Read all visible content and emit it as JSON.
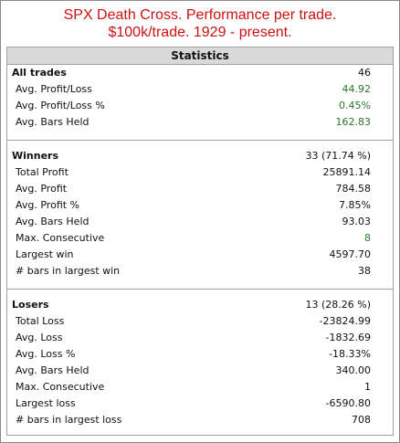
{
  "title": [
    "SPX Death Cross.  Performance per trade.",
    "$100k/trade. 1929 - present."
  ],
  "header": "Statistics",
  "sections": [
    {
      "label": "All trades",
      "value": "46",
      "rows": [
        {
          "label": "Avg. Profit/Loss",
          "value": "44.92",
          "color": "#2a7a2a"
        },
        {
          "label": "Avg. Profit/Loss %",
          "value": "0.45%",
          "color": "#2a7a2a"
        },
        {
          "label": "Avg. Bars Held",
          "value": "162.83",
          "color": "#2a7a2a"
        }
      ]
    },
    {
      "label": "Winners",
      "value": "33 (71.74 %)",
      "rows": [
        {
          "label": "Total Profit",
          "value": "25891.14"
        },
        {
          "label": "Avg. Profit",
          "value": "784.58"
        },
        {
          "label": "Avg. Profit %",
          "value": "7.85%"
        },
        {
          "label": "Avg. Bars Held",
          "value": "93.03"
        },
        {
          "label": "Max. Consecutive",
          "value": "8",
          "color": "#2a7a2a"
        },
        {
          "label": "Largest win",
          "value": "4597.70"
        },
        {
          "label": "# bars in largest win",
          "value": "38"
        }
      ]
    },
    {
      "label": "Losers",
      "value": "13 (28.26 %)",
      "rows": [
        {
          "label": "Total Loss",
          "value": "-23824.99"
        },
        {
          "label": "Avg. Loss",
          "value": "-1832.69"
        },
        {
          "label": "Avg. Loss %",
          "value": "-18.33%"
        },
        {
          "label": "Avg. Bars Held",
          "value": "340.00"
        },
        {
          "label": "Max. Consecutive",
          "value": "1"
        },
        {
          "label": "Largest loss",
          "value": "-6590.80"
        },
        {
          "label": "# bars in largest loss",
          "value": "708"
        }
      ]
    }
  ]
}
